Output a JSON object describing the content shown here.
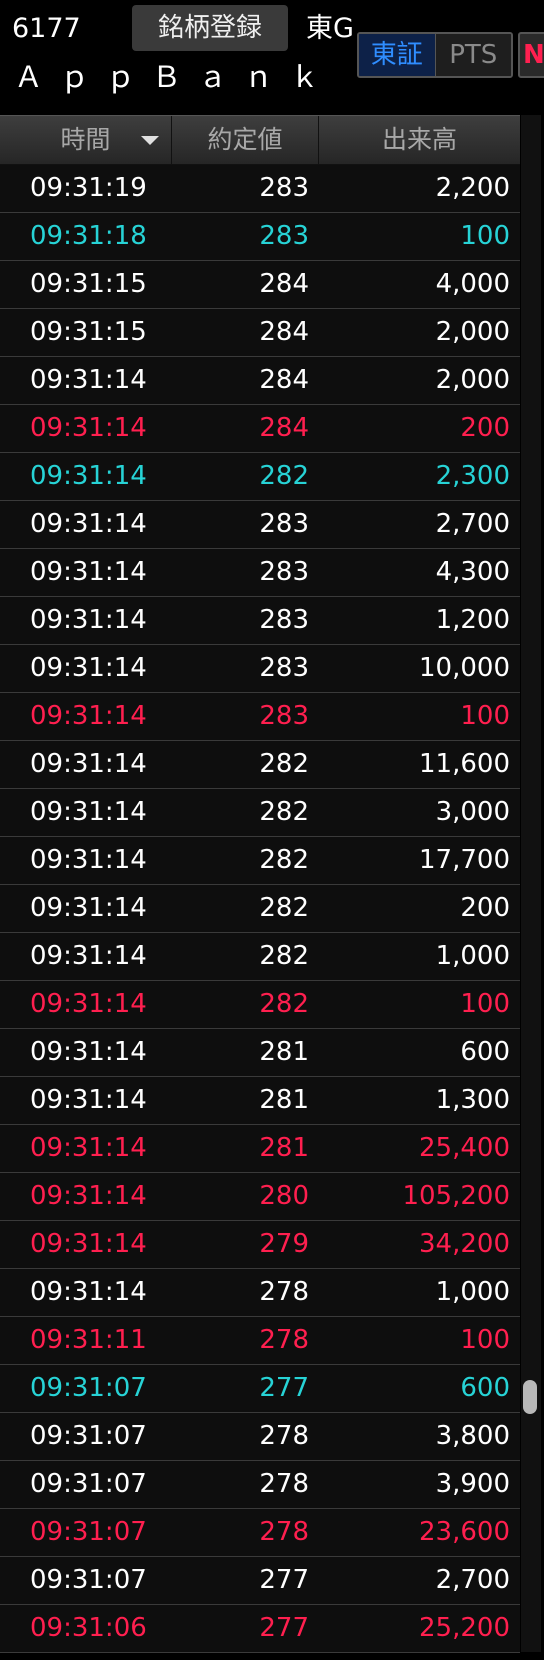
{
  "header": {
    "stock_code": "6177",
    "register_label": "銘柄登録",
    "market_label": "東G",
    "company_name": "ＡｐｐＢａｎｋ",
    "exchange_options": [
      "東証",
      "PTS"
    ],
    "selected_exchange": "東証",
    "next_tab_label": "N"
  },
  "table": {
    "columns": [
      "時間",
      "約定値",
      "出来高"
    ],
    "sort_column": "時間",
    "sort_direction": "descending",
    "rows": [
      {
        "time": "09:31:19",
        "price": "283",
        "volume": "2,200",
        "color": "white"
      },
      {
        "time": "09:31:18",
        "price": "283",
        "volume": "100",
        "color": "cyan"
      },
      {
        "time": "09:31:15",
        "price": "284",
        "volume": "4,000",
        "color": "white"
      },
      {
        "time": "09:31:15",
        "price": "284",
        "volume": "2,000",
        "color": "white"
      },
      {
        "time": "09:31:14",
        "price": "284",
        "volume": "2,000",
        "color": "white"
      },
      {
        "time": "09:31:14",
        "price": "284",
        "volume": "200",
        "color": "red"
      },
      {
        "time": "09:31:14",
        "price": "282",
        "volume": "2,300",
        "color": "cyan"
      },
      {
        "time": "09:31:14",
        "price": "283",
        "volume": "2,700",
        "color": "white"
      },
      {
        "time": "09:31:14",
        "price": "283",
        "volume": "4,300",
        "color": "white"
      },
      {
        "time": "09:31:14",
        "price": "283",
        "volume": "1,200",
        "color": "white"
      },
      {
        "time": "09:31:14",
        "price": "283",
        "volume": "10,000",
        "color": "white"
      },
      {
        "time": "09:31:14",
        "price": "283",
        "volume": "100",
        "color": "red"
      },
      {
        "time": "09:31:14",
        "price": "282",
        "volume": "11,600",
        "color": "white"
      },
      {
        "time": "09:31:14",
        "price": "282",
        "volume": "3,000",
        "color": "white"
      },
      {
        "time": "09:31:14",
        "price": "282",
        "volume": "17,700",
        "color": "white"
      },
      {
        "time": "09:31:14",
        "price": "282",
        "volume": "200",
        "color": "white"
      },
      {
        "time": "09:31:14",
        "price": "282",
        "volume": "1,000",
        "color": "white"
      },
      {
        "time": "09:31:14",
        "price": "282",
        "volume": "100",
        "color": "red"
      },
      {
        "time": "09:31:14",
        "price": "281",
        "volume": "600",
        "color": "white"
      },
      {
        "time": "09:31:14",
        "price": "281",
        "volume": "1,300",
        "color": "white"
      },
      {
        "time": "09:31:14",
        "price": "281",
        "volume": "25,400",
        "color": "red"
      },
      {
        "time": "09:31:14",
        "price": "280",
        "volume": "105,200",
        "color": "red"
      },
      {
        "time": "09:31:14",
        "price": "279",
        "volume": "34,200",
        "color": "red"
      },
      {
        "time": "09:31:14",
        "price": "278",
        "volume": "1,000",
        "color": "white"
      },
      {
        "time": "09:31:11",
        "price": "278",
        "volume": "100",
        "color": "red"
      },
      {
        "time": "09:31:07",
        "price": "277",
        "volume": "600",
        "color": "cyan"
      },
      {
        "time": "09:31:07",
        "price": "278",
        "volume": "3,800",
        "color": "white"
      },
      {
        "time": "09:31:07",
        "price": "278",
        "volume": "3,900",
        "color": "white"
      },
      {
        "time": "09:31:07",
        "price": "278",
        "volume": "23,600",
        "color": "red"
      },
      {
        "time": "09:31:07",
        "price": "277",
        "volume": "2,700",
        "color": "white"
      },
      {
        "time": "09:31:06",
        "price": "277",
        "volume": "25,200",
        "color": "red"
      }
    ]
  },
  "colors": {
    "white": "#ffffff",
    "cyan": "#27d3d6",
    "red": "#ff1f4f",
    "accent_blue": "#2f8dff"
  },
  "scrollbar": {
    "position_fraction": 0.82
  }
}
